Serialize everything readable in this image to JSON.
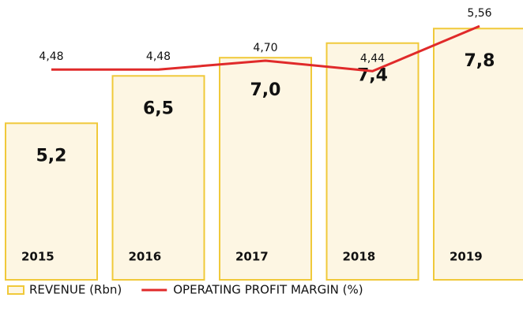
{
  "chart_data": {
    "type": "bar",
    "categories": [
      "2015",
      "2016",
      "2017",
      "2018",
      "2019"
    ],
    "series": [
      {
        "name": "REVENUE (Rbn)",
        "type": "bar",
        "color": "#fdf6e3",
        "edge_color": "#f0c93a",
        "values": [
          5.2,
          6.5,
          7.0,
          7.4,
          7.8
        ],
        "value_labels": [
          "5,2",
          "6,5",
          "7,0",
          "7,4",
          "7,8"
        ]
      },
      {
        "name": "OPERATING PROFIT MARGIN (%)",
        "type": "line",
        "axis": "y2",
        "color": "#e02a2a",
        "values": [
          4.48,
          4.48,
          4.7,
          4.44,
          5.56
        ],
        "value_labels": [
          "4,48",
          "4,48",
          "4,70",
          "4,44",
          "5,56"
        ]
      }
    ],
    "ylim": [
      0.9,
      8.0
    ],
    "y2lim": [
      -0.75,
      5.68
    ],
    "legend": "bottom-left"
  }
}
